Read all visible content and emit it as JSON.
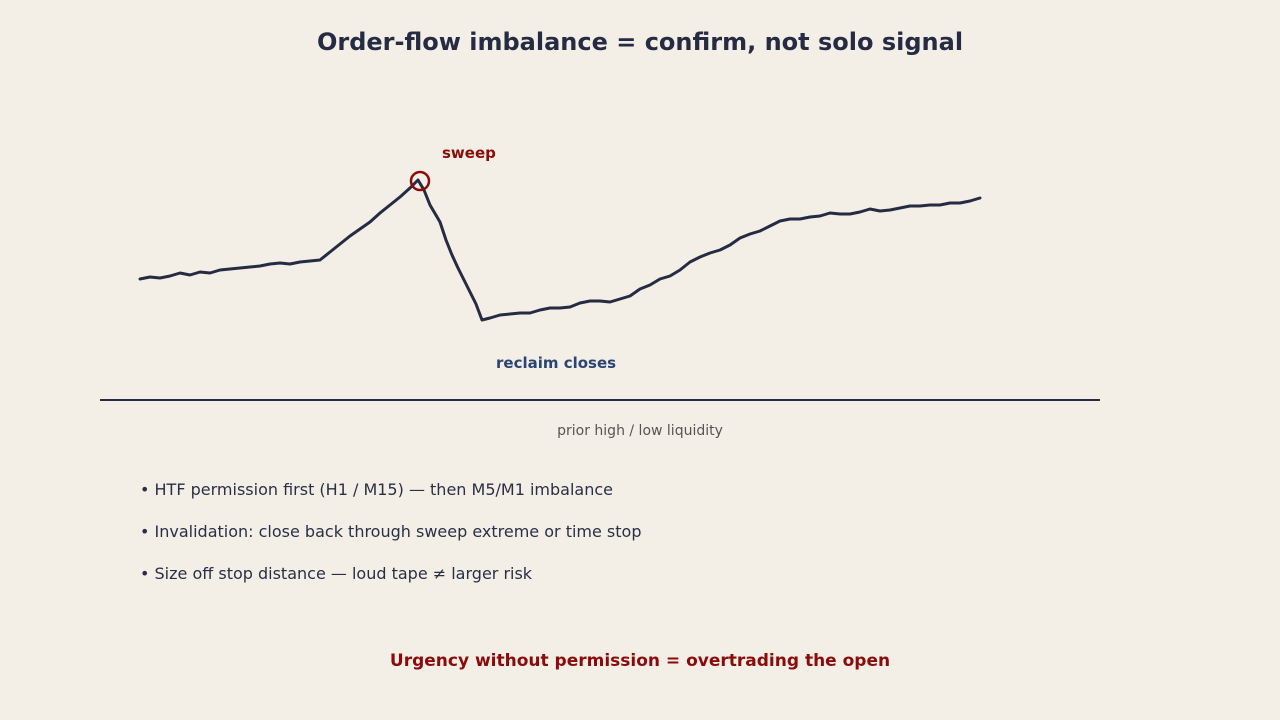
{
  "title": "Order-flow imbalance = confirm, not solo signal",
  "labels": {
    "sweep": "sweep",
    "reclaim": "reclaim closes",
    "baseline": "prior high / low liquidity"
  },
  "bullets": [
    "• HTF permission first (H1 / M15) — then M5/M1 imbalance",
    "• Invalidation: close back through sweep extreme or time stop",
    "• Size off stop distance — loud tape ≠ larger risk"
  ],
  "footer": "Urgency without permission = overtrading the open",
  "colors": {
    "background": "#f3efe6",
    "line": "#252b42",
    "accent_red": "#8b0a0a",
    "accent_blue": "#2b4472"
  }
}
